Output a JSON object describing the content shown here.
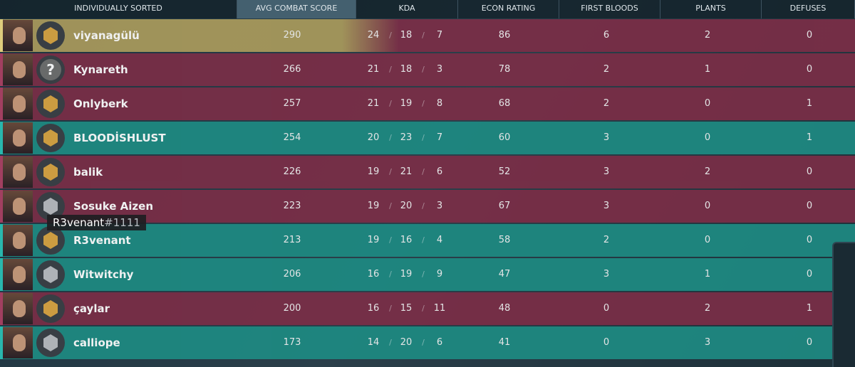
{
  "header": {
    "columns": [
      "INDIVIDUALLY SORTED",
      "AVG COMBAT SCORE",
      "KDA",
      "ECON RATING",
      "FIRST BLOODS",
      "PLANTS",
      "DEFUSES"
    ]
  },
  "kda_separator": "/",
  "row_colors": {
    "self": "#a99a5c",
    "red": "#7a2e47",
    "teal": "#1e8a82"
  },
  "rank_colors": {
    "gold": "#d9a441",
    "silver": "#b9bcc0",
    "unranked": "#8a8a8a"
  },
  "players": [
    {
      "name": "viyanagülü",
      "acs": 290,
      "kills": 24,
      "deaths": 18,
      "assists": 7,
      "econ": 86,
      "first_bloods": 6,
      "plants": 2,
      "defuses": 0,
      "team": "self",
      "rank": "gold"
    },
    {
      "name": "Kynareth",
      "acs": 266,
      "kills": 21,
      "deaths": 18,
      "assists": 3,
      "econ": 78,
      "first_bloods": 2,
      "plants": 1,
      "defuses": 0,
      "team": "red",
      "rank": "unranked",
      "rank_label": "?"
    },
    {
      "name": "Onlyberk",
      "acs": 257,
      "kills": 21,
      "deaths": 19,
      "assists": 8,
      "econ": 68,
      "first_bloods": 2,
      "plants": 0,
      "defuses": 1,
      "team": "red",
      "rank": "gold"
    },
    {
      "name": "BLOODİSHLUST",
      "acs": 254,
      "kills": 20,
      "deaths": 23,
      "assists": 7,
      "econ": 60,
      "first_bloods": 3,
      "plants": 0,
      "defuses": 1,
      "team": "teal",
      "rank": "gold"
    },
    {
      "name": "balik",
      "acs": 226,
      "kills": 19,
      "deaths": 21,
      "assists": 6,
      "econ": 52,
      "first_bloods": 3,
      "plants": 2,
      "defuses": 0,
      "team": "red",
      "rank": "gold"
    },
    {
      "name": "Sosuke Aizen",
      "acs": 223,
      "kills": 19,
      "deaths": 20,
      "assists": 3,
      "econ": 67,
      "first_bloods": 3,
      "plants": 0,
      "defuses": 0,
      "team": "red",
      "rank": "silver"
    },
    {
      "name": "R3venant",
      "acs": 213,
      "kills": 19,
      "deaths": 16,
      "assists": 4,
      "econ": 58,
      "first_bloods": 2,
      "plants": 0,
      "defuses": 0,
      "team": "teal",
      "rank": "gold"
    },
    {
      "name": "Witwitchy",
      "acs": 206,
      "kills": 16,
      "deaths": 19,
      "assists": 9,
      "econ": 47,
      "first_bloods": 3,
      "plants": 1,
      "defuses": 0,
      "team": "teal",
      "rank": "silver"
    },
    {
      "name": "çaylar",
      "acs": 200,
      "kills": 16,
      "deaths": 15,
      "assists": 11,
      "econ": 48,
      "first_bloods": 0,
      "plants": 2,
      "defuses": 1,
      "team": "red",
      "rank": "gold"
    },
    {
      "name": "calliope",
      "acs": 173,
      "kills": 14,
      "deaths": 20,
      "assists": 6,
      "econ": 41,
      "first_bloods": 0,
      "plants": 3,
      "defuses": 0,
      "team": "teal",
      "rank": "silver"
    }
  ],
  "tooltip": {
    "name": "R3venant",
    "tag": "#1111"
  }
}
